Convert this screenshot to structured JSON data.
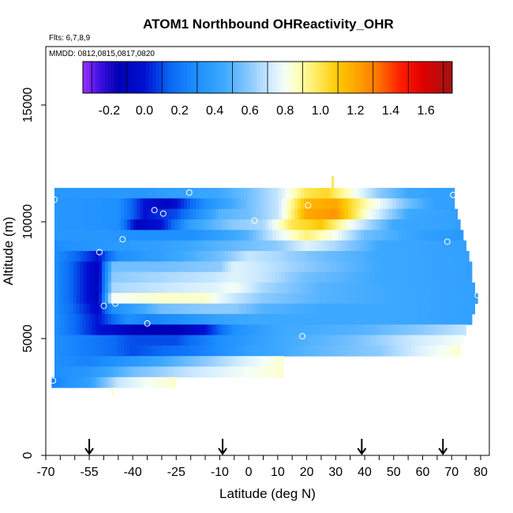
{
  "chart_data": {
    "type": "heatmap",
    "title": "ATOM1 Northbound OHReactivity_OHR",
    "subtitle_flights": "Flts: 6,7,8,9",
    "subtitle_dates": "MMDD: 0812,0815,0817,0820",
    "xlabel": "Latitude (deg N)",
    "ylabel": "Altitude (m)",
    "xlim": [
      -70,
      83
    ],
    "ylim": [
      0,
      17500
    ],
    "x_ticks": [
      {
        "value": -70,
        "label": "-70"
      },
      {
        "value": -55,
        "label": "-55"
      },
      {
        "value": -40,
        "label": "-40"
      },
      {
        "value": -25,
        "label": "-25"
      },
      {
        "value": -10,
        "label": "-10"
      },
      {
        "value": 0,
        "label": "0"
      },
      {
        "value": 10,
        "label": "10"
      },
      {
        "value": 20,
        "label": "20"
      },
      {
        "value": 30,
        "label": "30"
      },
      {
        "value": 40,
        "label": "40"
      },
      {
        "value": 50,
        "label": "50"
      },
      {
        "value": 60,
        "label": "60"
      },
      {
        "value": 70,
        "label": "70"
      },
      {
        "value": 80,
        "label": "80"
      }
    ],
    "y_ticks": [
      {
        "value": 0,
        "label": "0"
      },
      {
        "value": 5000,
        "label": "5000"
      },
      {
        "value": 10000,
        "label": "10000"
      },
      {
        "value": 15000,
        "label": "15000"
      }
    ],
    "colorbar": {
      "min": -0.35,
      "max": 1.75,
      "ticks": [
        {
          "value": -0.2,
          "label": "-0.2"
        },
        {
          "value": 0.0,
          "label": "0.0"
        },
        {
          "value": 0.2,
          "label": "0.2"
        },
        {
          "value": 0.4,
          "label": "0.4"
        },
        {
          "value": 0.6,
          "label": "0.6"
        },
        {
          "value": 0.8,
          "label": "0.8"
        },
        {
          "value": 1.0,
          "label": "1.0"
        },
        {
          "value": 1.2,
          "label": "1.2"
        },
        {
          "value": 1.4,
          "label": "1.4"
        },
        {
          "value": 1.6,
          "label": "1.6"
        }
      ],
      "stops": [
        {
          "v": -0.35,
          "c": "#9a30ff"
        },
        {
          "v": -0.25,
          "c": "#3c10e0"
        },
        {
          "v": -0.15,
          "c": "#0000b4"
        },
        {
          "v": 0.0,
          "c": "#0010d2"
        },
        {
          "v": 0.15,
          "c": "#0a6af5"
        },
        {
          "v": 0.3,
          "c": "#1e90ff"
        },
        {
          "v": 0.45,
          "c": "#3ca8ff"
        },
        {
          "v": 0.6,
          "c": "#8ccaff"
        },
        {
          "v": 0.72,
          "c": "#d2ecff"
        },
        {
          "v": 0.8,
          "c": "#f5fff5"
        },
        {
          "v": 0.88,
          "c": "#ffffb4"
        },
        {
          "v": 1.0,
          "c": "#ffe650"
        },
        {
          "v": 1.1,
          "c": "#ffc800"
        },
        {
          "v": 1.22,
          "c": "#ffa000"
        },
        {
          "v": 1.32,
          "c": "#ff7800"
        },
        {
          "v": 1.45,
          "c": "#ff2000"
        },
        {
          "v": 1.58,
          "c": "#e00000"
        },
        {
          "v": 1.75,
          "c": "#a01414"
        }
      ]
    },
    "flight_arrows_lat": [
      -55,
      -9,
      39,
      67
    ],
    "field_rows": [
      {
        "alt": [
          11000,
          11450
        ],
        "x0": -67,
        "x1": 71,
        "lats": [
          -67,
          -50,
          -36,
          -25,
          -10,
          0,
          10,
          20,
          27,
          35,
          45,
          55,
          65,
          71
        ],
        "vals": [
          0.35,
          0.35,
          0.35,
          0.4,
          0.45,
          0.55,
          0.7,
          1.0,
          1.05,
          0.85,
          0.6,
          0.45,
          0.4,
          0.4
        ]
      },
      {
        "alt": [
          10550,
          11000
        ],
        "x0": -67,
        "x1": 71,
        "lats": [
          -67,
          -45,
          -36,
          -28,
          -15,
          0,
          10,
          20,
          30,
          40,
          55,
          65,
          71
        ],
        "vals": [
          0.35,
          0.3,
          0.0,
          -0.1,
          0.3,
          0.55,
          0.7,
          1.15,
          1.2,
          0.9,
          0.55,
          0.4,
          0.4
        ]
      },
      {
        "alt": [
          10100,
          10550
        ],
        "x0": -67,
        "x1": 72,
        "lats": [
          -67,
          -45,
          -36,
          -25,
          -10,
          0,
          10,
          20,
          30,
          40,
          55,
          72
        ],
        "vals": [
          0.35,
          0.3,
          0.0,
          0.1,
          0.5,
          0.55,
          0.7,
          1.2,
          1.25,
          0.85,
          0.45,
          0.4
        ]
      },
      {
        "alt": [
          9650,
          10100
        ],
        "x0": -67,
        "x1": 73,
        "lats": [
          -67,
          -45,
          -38,
          -30,
          -20,
          -5,
          5,
          15,
          25,
          35,
          50,
          73
        ],
        "vals": [
          0.35,
          0.3,
          -0.1,
          0.0,
          0.4,
          0.6,
          0.65,
          1.0,
          1.1,
          0.8,
          0.45,
          0.4
        ]
      },
      {
        "alt": [
          9200,
          9650
        ],
        "x0": -67,
        "x1": 74,
        "lats": [
          -67,
          -50,
          -38,
          -20,
          0,
          10,
          20,
          30,
          40,
          60,
          74
        ],
        "vals": [
          0.35,
          0.35,
          0.3,
          0.3,
          0.5,
          0.75,
          0.95,
          0.8,
          0.55,
          0.4,
          0.35
        ]
      },
      {
        "alt": [
          8750,
          9200
        ],
        "x0": -67,
        "x1": 75,
        "lats": [
          -67,
          -50,
          -30,
          -10,
          0,
          10,
          20,
          30,
          45,
          75
        ],
        "vals": [
          0.3,
          0.35,
          0.4,
          0.5,
          0.55,
          0.6,
          0.75,
          0.65,
          0.45,
          0.4
        ]
      },
      {
        "alt": [
          8300,
          8750
        ],
        "x0": -67,
        "x1": 76,
        "lats": [
          -67,
          -52,
          -45,
          -30,
          -10,
          0,
          10,
          25,
          45,
          76
        ],
        "vals": [
          0.3,
          0.0,
          0.3,
          0.4,
          0.55,
          0.7,
          0.65,
          0.55,
          0.45,
          0.4
        ]
      },
      {
        "alt": [
          7850,
          8300
        ],
        "x0": -67,
        "x1": 77,
        "lats": [
          -67,
          -52,
          -47,
          -30,
          -10,
          -5,
          5,
          20,
          45,
          77
        ],
        "vals": [
          0.3,
          -0.1,
          0.55,
          0.55,
          0.6,
          0.75,
          0.7,
          0.6,
          0.45,
          0.4
        ]
      },
      {
        "alt": [
          7400,
          7850
        ],
        "x0": -67,
        "x1": 77,
        "lats": [
          -67,
          -52,
          -47,
          -30,
          -12,
          -5,
          5,
          20,
          45,
          77
        ],
        "vals": [
          0.3,
          -0.1,
          0.6,
          0.65,
          0.7,
          0.75,
          0.7,
          0.55,
          0.45,
          0.4
        ]
      },
      {
        "alt": [
          6950,
          7400
        ],
        "x0": -67,
        "x1": 78,
        "lats": [
          -67,
          -52,
          -47,
          -30,
          -12,
          -5,
          5,
          25,
          50,
          78
        ],
        "vals": [
          0.3,
          -0.1,
          0.65,
          0.7,
          0.75,
          0.8,
          0.65,
          0.5,
          0.45,
          0.4
        ]
      },
      {
        "alt": [
          6500,
          6950
        ],
        "x0": -67,
        "x1": 79,
        "lats": [
          -67,
          -52,
          -47,
          -30,
          -15,
          -5,
          5,
          25,
          50,
          79
        ],
        "vals": [
          0.3,
          -0.1,
          0.8,
          0.85,
          0.85,
          0.7,
          0.6,
          0.5,
          0.45,
          0.4
        ]
      },
      {
        "alt": [
          6050,
          6500
        ],
        "x0": -67,
        "x1": 78,
        "lats": [
          -67,
          -52,
          -47,
          -30,
          -15,
          -5,
          5,
          25,
          50,
          78
        ],
        "vals": [
          0.3,
          -0.05,
          0.3,
          0.55,
          0.6,
          0.6,
          0.5,
          0.45,
          0.45,
          0.4
        ]
      },
      {
        "alt": [
          5600,
          6050
        ],
        "x0": -67,
        "x1": 77,
        "lats": [
          -67,
          -52,
          -42,
          -35,
          -25,
          -12,
          0,
          25,
          50,
          77
        ],
        "vals": [
          0.3,
          0.0,
          0.3,
          0.25,
          0.3,
          0.4,
          0.45,
          0.45,
          0.45,
          0.4
        ]
      },
      {
        "alt": [
          5150,
          5600
        ],
        "x0": -67,
        "x1": 75,
        "lats": [
          -67,
          -52,
          -42,
          -35,
          -25,
          -15,
          -5,
          10,
          40,
          60,
          75
        ],
        "vals": [
          0.3,
          0.0,
          -0.1,
          -0.15,
          -0.15,
          0.0,
          0.3,
          0.45,
          0.5,
          0.6,
          0.7
        ]
      },
      {
        "alt": [
          4700,
          5150
        ],
        "x0": -67,
        "x1": 74,
        "lats": [
          -67,
          -52,
          -40,
          -25,
          -10,
          10,
          35,
          55,
          74
        ],
        "vals": [
          0.3,
          0.2,
          0.1,
          0.1,
          0.3,
          0.45,
          0.55,
          0.7,
          0.8
        ]
      },
      {
        "alt": [
          4250,
          4700
        ],
        "x0": -67,
        "x1": 73,
        "lats": [
          -67,
          -52,
          -40,
          -20,
          0,
          20,
          45,
          60,
          73
        ],
        "vals": [
          0.3,
          0.2,
          0.1,
          0.2,
          0.4,
          0.5,
          0.6,
          0.75,
          0.85
        ]
      },
      {
        "alt": [
          3800,
          4250
        ],
        "x0": -67,
        "x1": 12,
        "lats": [
          -67,
          -55,
          -40,
          -20,
          0,
          12
        ],
        "vals": [
          0.3,
          0.25,
          0.35,
          0.55,
          0.75,
          0.85
        ]
      },
      {
        "alt": [
          3350,
          3800
        ],
        "x0": -67,
        "x1": 12,
        "lats": [
          -67,
          -55,
          -40,
          -20,
          0,
          12
        ],
        "vals": [
          0.3,
          0.35,
          0.55,
          0.7,
          0.8,
          0.85
        ]
      },
      {
        "alt": [
          2900,
          3350
        ],
        "x0": -68,
        "x1": -25,
        "lats": [
          -68,
          -55,
          -45,
          -35,
          -25
        ],
        "vals": [
          0.25,
          0.4,
          0.7,
          0.8,
          0.85
        ]
      }
    ],
    "observations": [
      {
        "lat": -67.5,
        "alt": 3200
      },
      {
        "lat": -67,
        "alt": 10950
      },
      {
        "lat": -51.5,
        "alt": 8700
      },
      {
        "lat": -50,
        "alt": 6400
      },
      {
        "lat": -46,
        "alt": 6500
      },
      {
        "lat": -43.5,
        "alt": 9250
      },
      {
        "lat": -35,
        "alt": 5650
      },
      {
        "lat": -32.5,
        "alt": 10500
      },
      {
        "lat": -29.5,
        "alt": 10350
      },
      {
        "lat": -20.5,
        "alt": 11250
      },
      {
        "lat": 2,
        "alt": 10050
      },
      {
        "lat": 14,
        "alt": 11050
      },
      {
        "lat": 18.5,
        "alt": 5100
      },
      {
        "lat": 20.5,
        "alt": 10700
      },
      {
        "lat": 68.5,
        "alt": 9150
      },
      {
        "lat": 70.5,
        "alt": 11150
      },
      {
        "lat": 79,
        "alt": 6850
      }
    ],
    "sparse_obs": [
      {
        "lat": -47,
        "alt_from": 2550,
        "alt_to": 2900,
        "value": 0.85
      },
      {
        "lat": 29,
        "alt_from": 11450,
        "alt_to": 11950,
        "value": 1.0
      }
    ]
  }
}
